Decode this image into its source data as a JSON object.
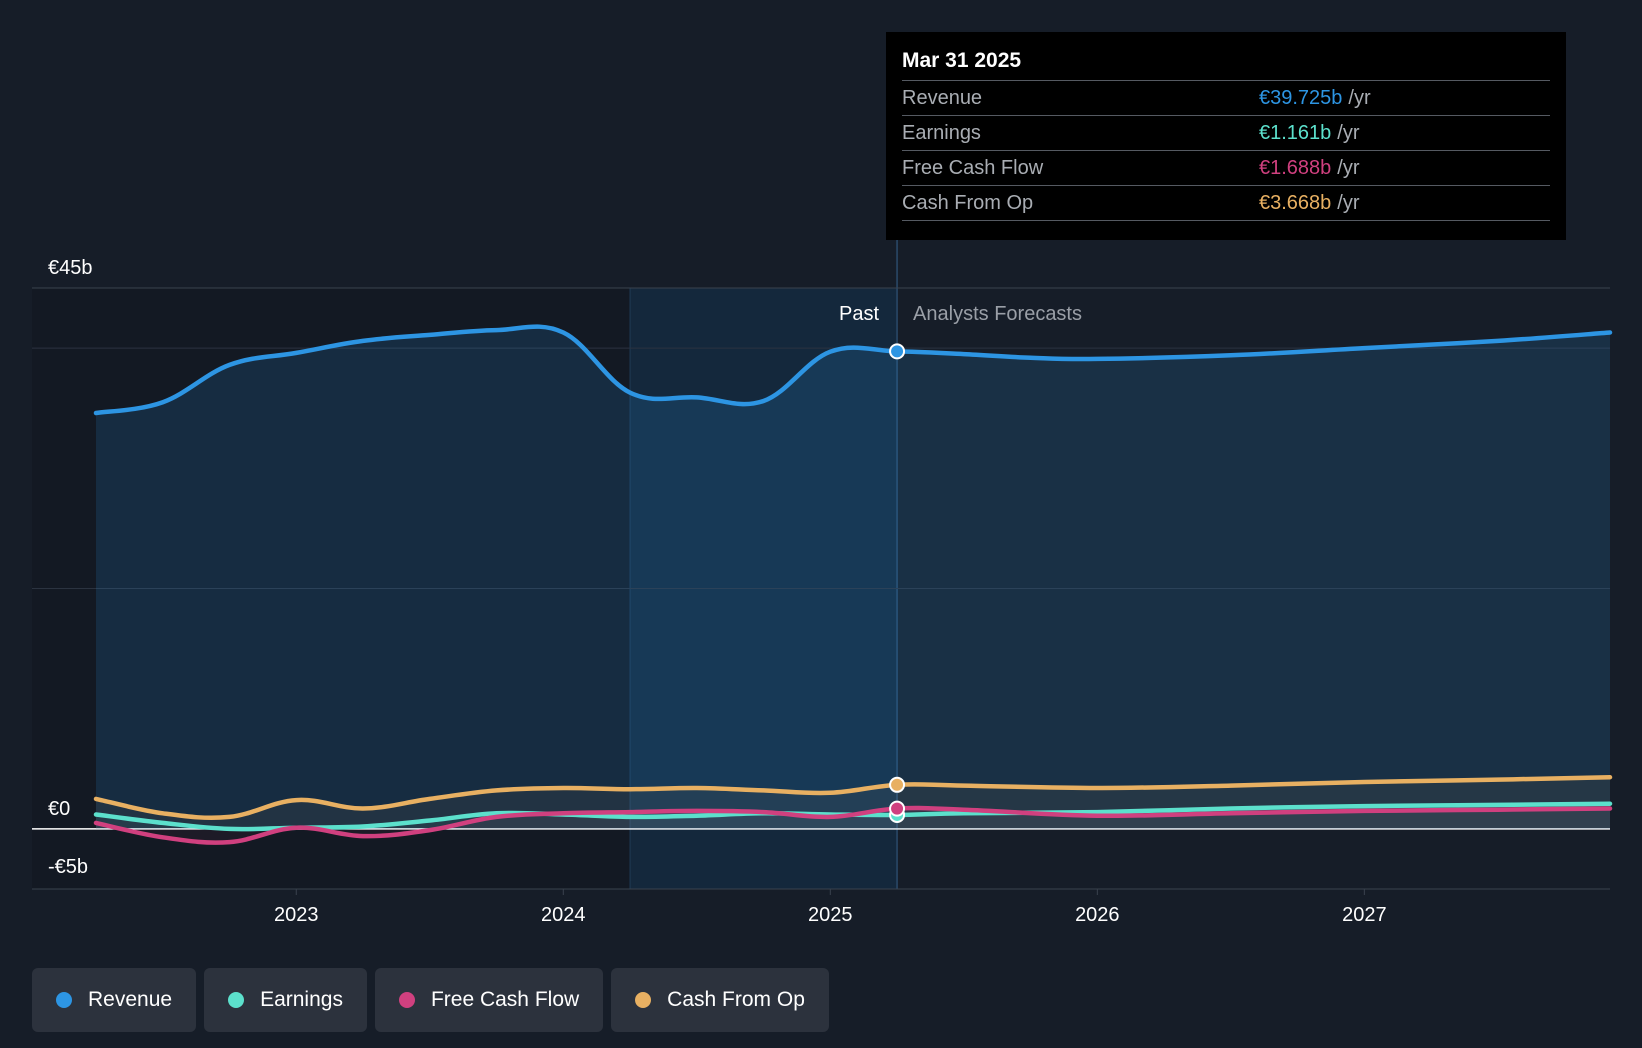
{
  "colors": {
    "revenue": "#2d95e3",
    "earnings": "#5ce0cc",
    "free_cash_flow": "#d0407f",
    "cash_from_op": "#e8b062",
    "background": "#161d28"
  },
  "tooltip": {
    "date": "Mar 31 2025",
    "rows": [
      {
        "name": "Revenue",
        "value": "€39.725b",
        "unit": "/yr",
        "color": "#2d95e3"
      },
      {
        "name": "Earnings",
        "value": "€1.161b",
        "unit": "/yr",
        "color": "#5ce0cc"
      },
      {
        "name": "Free Cash Flow",
        "value": "€1.688b",
        "unit": "/yr",
        "color": "#d0407f"
      },
      {
        "name": "Cash From Op",
        "value": "€3.668b",
        "unit": "/yr",
        "color": "#e8b062"
      }
    ]
  },
  "labels": {
    "past": "Past",
    "forecast": "Analysts Forecasts"
  },
  "legend": [
    {
      "label": "Revenue",
      "color": "#2d95e3"
    },
    {
      "label": "Earnings",
      "color": "#5ce0cc"
    },
    {
      "label": "Free Cash Flow",
      "color": "#d0407f"
    },
    {
      "label": "Cash From Op",
      "color": "#e8b062"
    }
  ],
  "chart_data": {
    "type": "line",
    "x_range": [
      2022.25,
      2027.92
    ],
    "ylim": [
      -5,
      45
    ],
    "y_tick_labels": [
      {
        "value": 45,
        "label": "€45b"
      },
      {
        "value": 0,
        "label": "€0"
      },
      {
        "value": -5,
        "label": "-€5b"
      }
    ],
    "gridlines": [
      40,
      20
    ],
    "x_ticks": [
      {
        "value": 2023,
        "label": "2023"
      },
      {
        "value": 2024,
        "label": "2024"
      },
      {
        "value": 2025,
        "label": "2025"
      },
      {
        "value": 2026,
        "label": "2026"
      },
      {
        "value": 2027,
        "label": "2027"
      }
    ],
    "highlight_start": 2024.25,
    "divider": 2025.25,
    "series": [
      {
        "name": "Revenue",
        "key": "revenue",
        "x": [
          2022.25,
          2022.5,
          2022.75,
          2023.0,
          2023.25,
          2023.5,
          2023.75,
          2024.0,
          2024.25,
          2024.5,
          2024.75,
          2025.0,
          2025.25,
          2025.5,
          2025.75,
          2026.0,
          2026.5,
          2027.0,
          2027.5,
          2027.92
        ],
        "values": [
          34.6,
          35.5,
          38.6,
          39.6,
          40.6,
          41.1,
          41.5,
          41.3,
          36.3,
          35.9,
          35.6,
          39.7,
          39.725,
          39.5,
          39.2,
          39.1,
          39.4,
          40.0,
          40.6,
          41.3
        ]
      },
      {
        "name": "Earnings",
        "key": "earnings",
        "x": [
          2022.25,
          2022.5,
          2022.75,
          2023.0,
          2023.25,
          2023.5,
          2023.75,
          2024.0,
          2024.25,
          2024.5,
          2024.75,
          2025.0,
          2025.25,
          2025.5,
          2026.0,
          2026.5,
          2027.0,
          2027.5,
          2027.92
        ],
        "values": [
          1.2,
          0.5,
          0.0,
          0.1,
          0.2,
          0.7,
          1.3,
          1.2,
          1.0,
          1.1,
          1.3,
          1.2,
          1.161,
          1.3,
          1.4,
          1.7,
          1.9,
          2.0,
          2.1
        ]
      },
      {
        "name": "Free Cash Flow",
        "key": "free_cash_flow",
        "x": [
          2022.25,
          2022.5,
          2022.75,
          2023.0,
          2023.25,
          2023.5,
          2023.75,
          2024.0,
          2024.25,
          2024.5,
          2024.75,
          2025.0,
          2025.25,
          2025.5,
          2026.0,
          2026.5,
          2027.0,
          2027.5,
          2027.92
        ],
        "values": [
          0.5,
          -0.7,
          -1.1,
          0.1,
          -0.6,
          -0.1,
          1.0,
          1.3,
          1.4,
          1.5,
          1.4,
          1.0,
          1.688,
          1.6,
          1.1,
          1.3,
          1.5,
          1.6,
          1.7
        ]
      },
      {
        "name": "Cash From Op",
        "key": "cash_from_op",
        "x": [
          2022.25,
          2022.5,
          2022.75,
          2023.0,
          2023.25,
          2023.5,
          2023.75,
          2024.0,
          2024.25,
          2024.5,
          2024.75,
          2025.0,
          2025.25,
          2025.5,
          2026.0,
          2026.5,
          2027.0,
          2027.5,
          2027.92
        ],
        "values": [
          2.5,
          1.3,
          1.0,
          2.4,
          1.7,
          2.5,
          3.2,
          3.4,
          3.3,
          3.4,
          3.2,
          3.0,
          3.668,
          3.6,
          3.4,
          3.6,
          3.9,
          4.1,
          4.3
        ]
      }
    ],
    "markers_at": 2025.25
  }
}
